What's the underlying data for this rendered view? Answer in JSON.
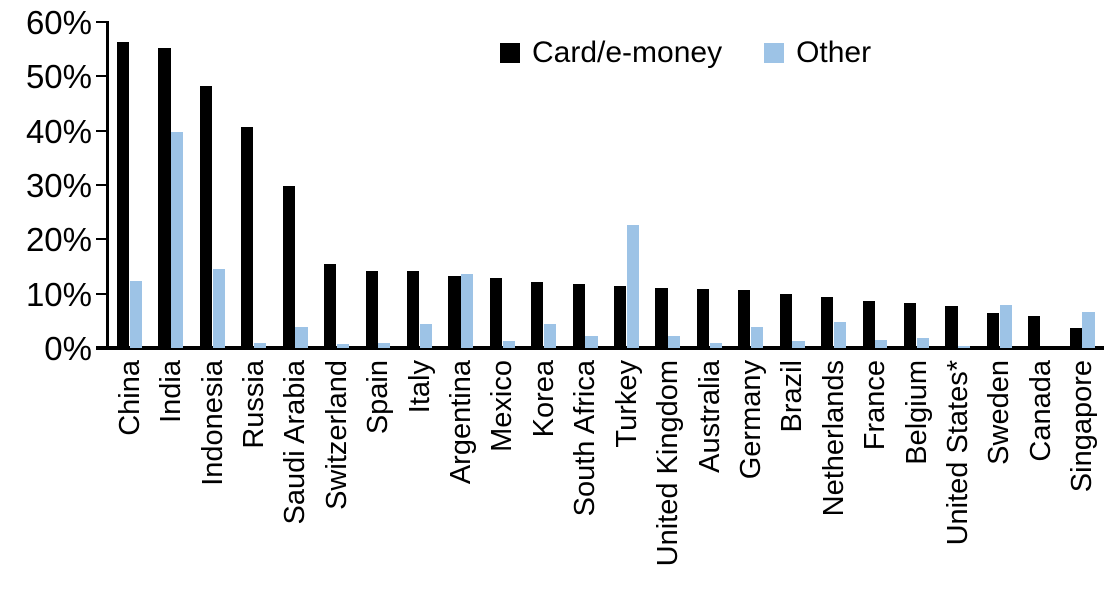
{
  "chart_data": {
    "type": "bar",
    "title": "",
    "xlabel": "",
    "ylabel": "",
    "ylim": [
      0,
      60
    ],
    "ytick_step": 10,
    "ytick_labels": [
      "0%",
      "10%",
      "20%",
      "30%",
      "40%",
      "50%",
      "60%"
    ],
    "grid": "off",
    "legend_position": "top-center",
    "categories": [
      "China",
      "India",
      "Indonesia",
      "Russia",
      "Saudi Arabia",
      "Switzerland",
      "Spain",
      "Italy",
      "Argentina",
      "Mexico",
      "Korea",
      "South Africa",
      "Turkey",
      "United Kingdom",
      "Australia",
      "Germany",
      "Brazil",
      "Netherlands",
      "France",
      "Belgium",
      "United States*",
      "Sweden",
      "Canada",
      "Singapore"
    ],
    "series": [
      {
        "name": "Card/e-money",
        "color": "#000000",
        "values": [
          56.4,
          55.2,
          48.3,
          40.7,
          29.8,
          15.5,
          14.2,
          14.1,
          13.2,
          12.8,
          12.2,
          11.7,
          11.5,
          11.1,
          10.8,
          10.6,
          10.0,
          9.3,
          8.6,
          8.2,
          7.8,
          6.4,
          5.8,
          3.7
        ]
      },
      {
        "name": "Other",
        "color": "#9DC3E6",
        "values": [
          12.3,
          39.8,
          14.6,
          1.0,
          3.9,
          0.8,
          1.0,
          4.5,
          13.7,
          1.2,
          4.5,
          2.3,
          22.6,
          2.3,
          1.0,
          3.9,
          1.2,
          4.8,
          1.5,
          1.9,
          0.3,
          7.9,
          0.0,
          6.6
        ]
      }
    ]
  }
}
